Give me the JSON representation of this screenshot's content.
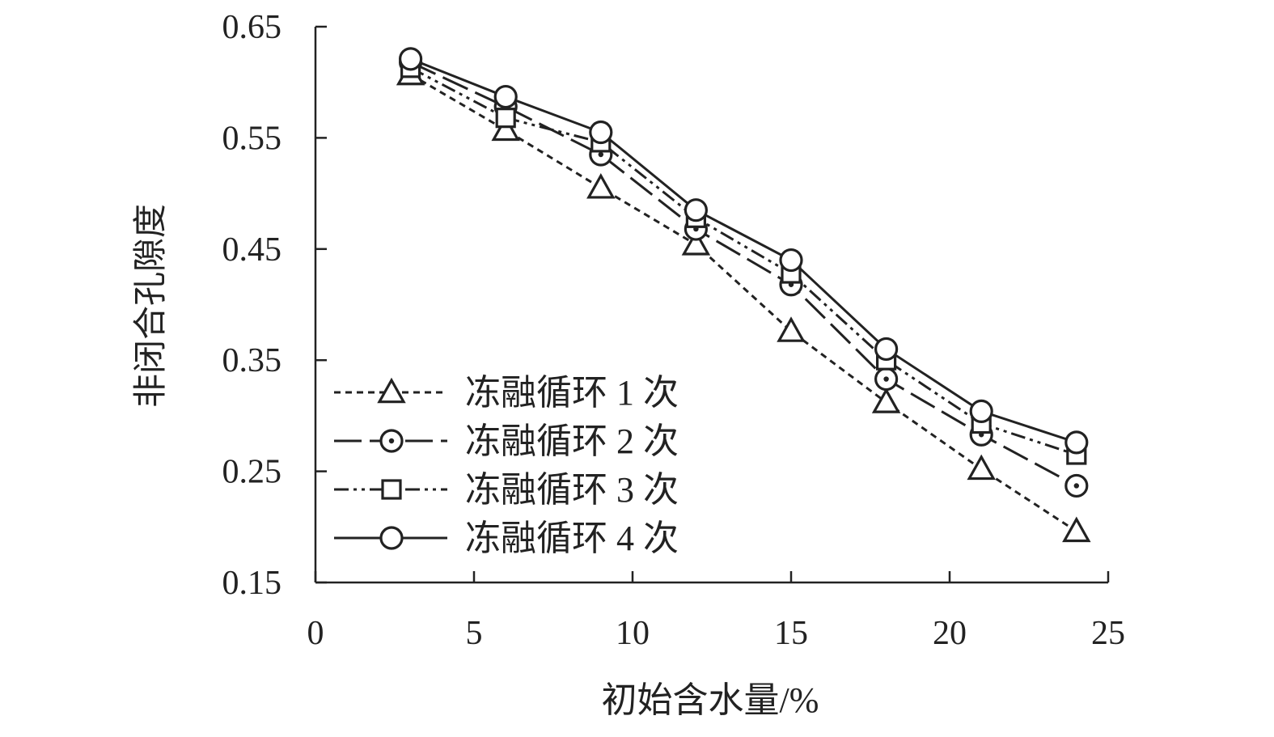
{
  "chart_data": {
    "type": "line",
    "title": "",
    "xlabel": "初始含水量/%",
    "ylabel": "非闭合孔隙度",
    "xlim": [
      0,
      25
    ],
    "ylim": [
      0.15,
      0.65
    ],
    "xticks": [
      0,
      5,
      10,
      15,
      20,
      25
    ],
    "yticks": [
      0.15,
      0.25,
      0.35,
      0.45,
      0.55,
      0.65
    ],
    "ytick_labels": [
      "0.15",
      "0.25",
      "0.35",
      "0.45",
      "0.55",
      "0.65"
    ],
    "grid": false,
    "legend_position": "bottom-left",
    "x": [
      3,
      6,
      9,
      12,
      15,
      18,
      21,
      24
    ],
    "series": [
      {
        "name": "冻融循环 1 次",
        "marker": "triangle",
        "line_style": "short-dash",
        "values": [
          0.607,
          0.557,
          0.505,
          0.454,
          0.376,
          0.312,
          0.252,
          0.196
        ]
      },
      {
        "name": "冻融循环 2 次",
        "marker": "circle-dot",
        "line_style": "long-dash",
        "values": [
          0.618,
          0.578,
          0.535,
          0.468,
          0.418,
          0.333,
          0.283,
          0.237
        ]
      },
      {
        "name": "冻融循环 3 次",
        "marker": "square",
        "line_style": "dash-dot-dot",
        "values": [
          0.613,
          0.568,
          0.546,
          0.478,
          0.428,
          0.35,
          0.293,
          0.265
        ]
      },
      {
        "name": "冻融循环 4 次",
        "marker": "circle",
        "line_style": "solid",
        "values": [
          0.621,
          0.587,
          0.555,
          0.485,
          0.44,
          0.36,
          0.304,
          0.276
        ]
      }
    ]
  }
}
